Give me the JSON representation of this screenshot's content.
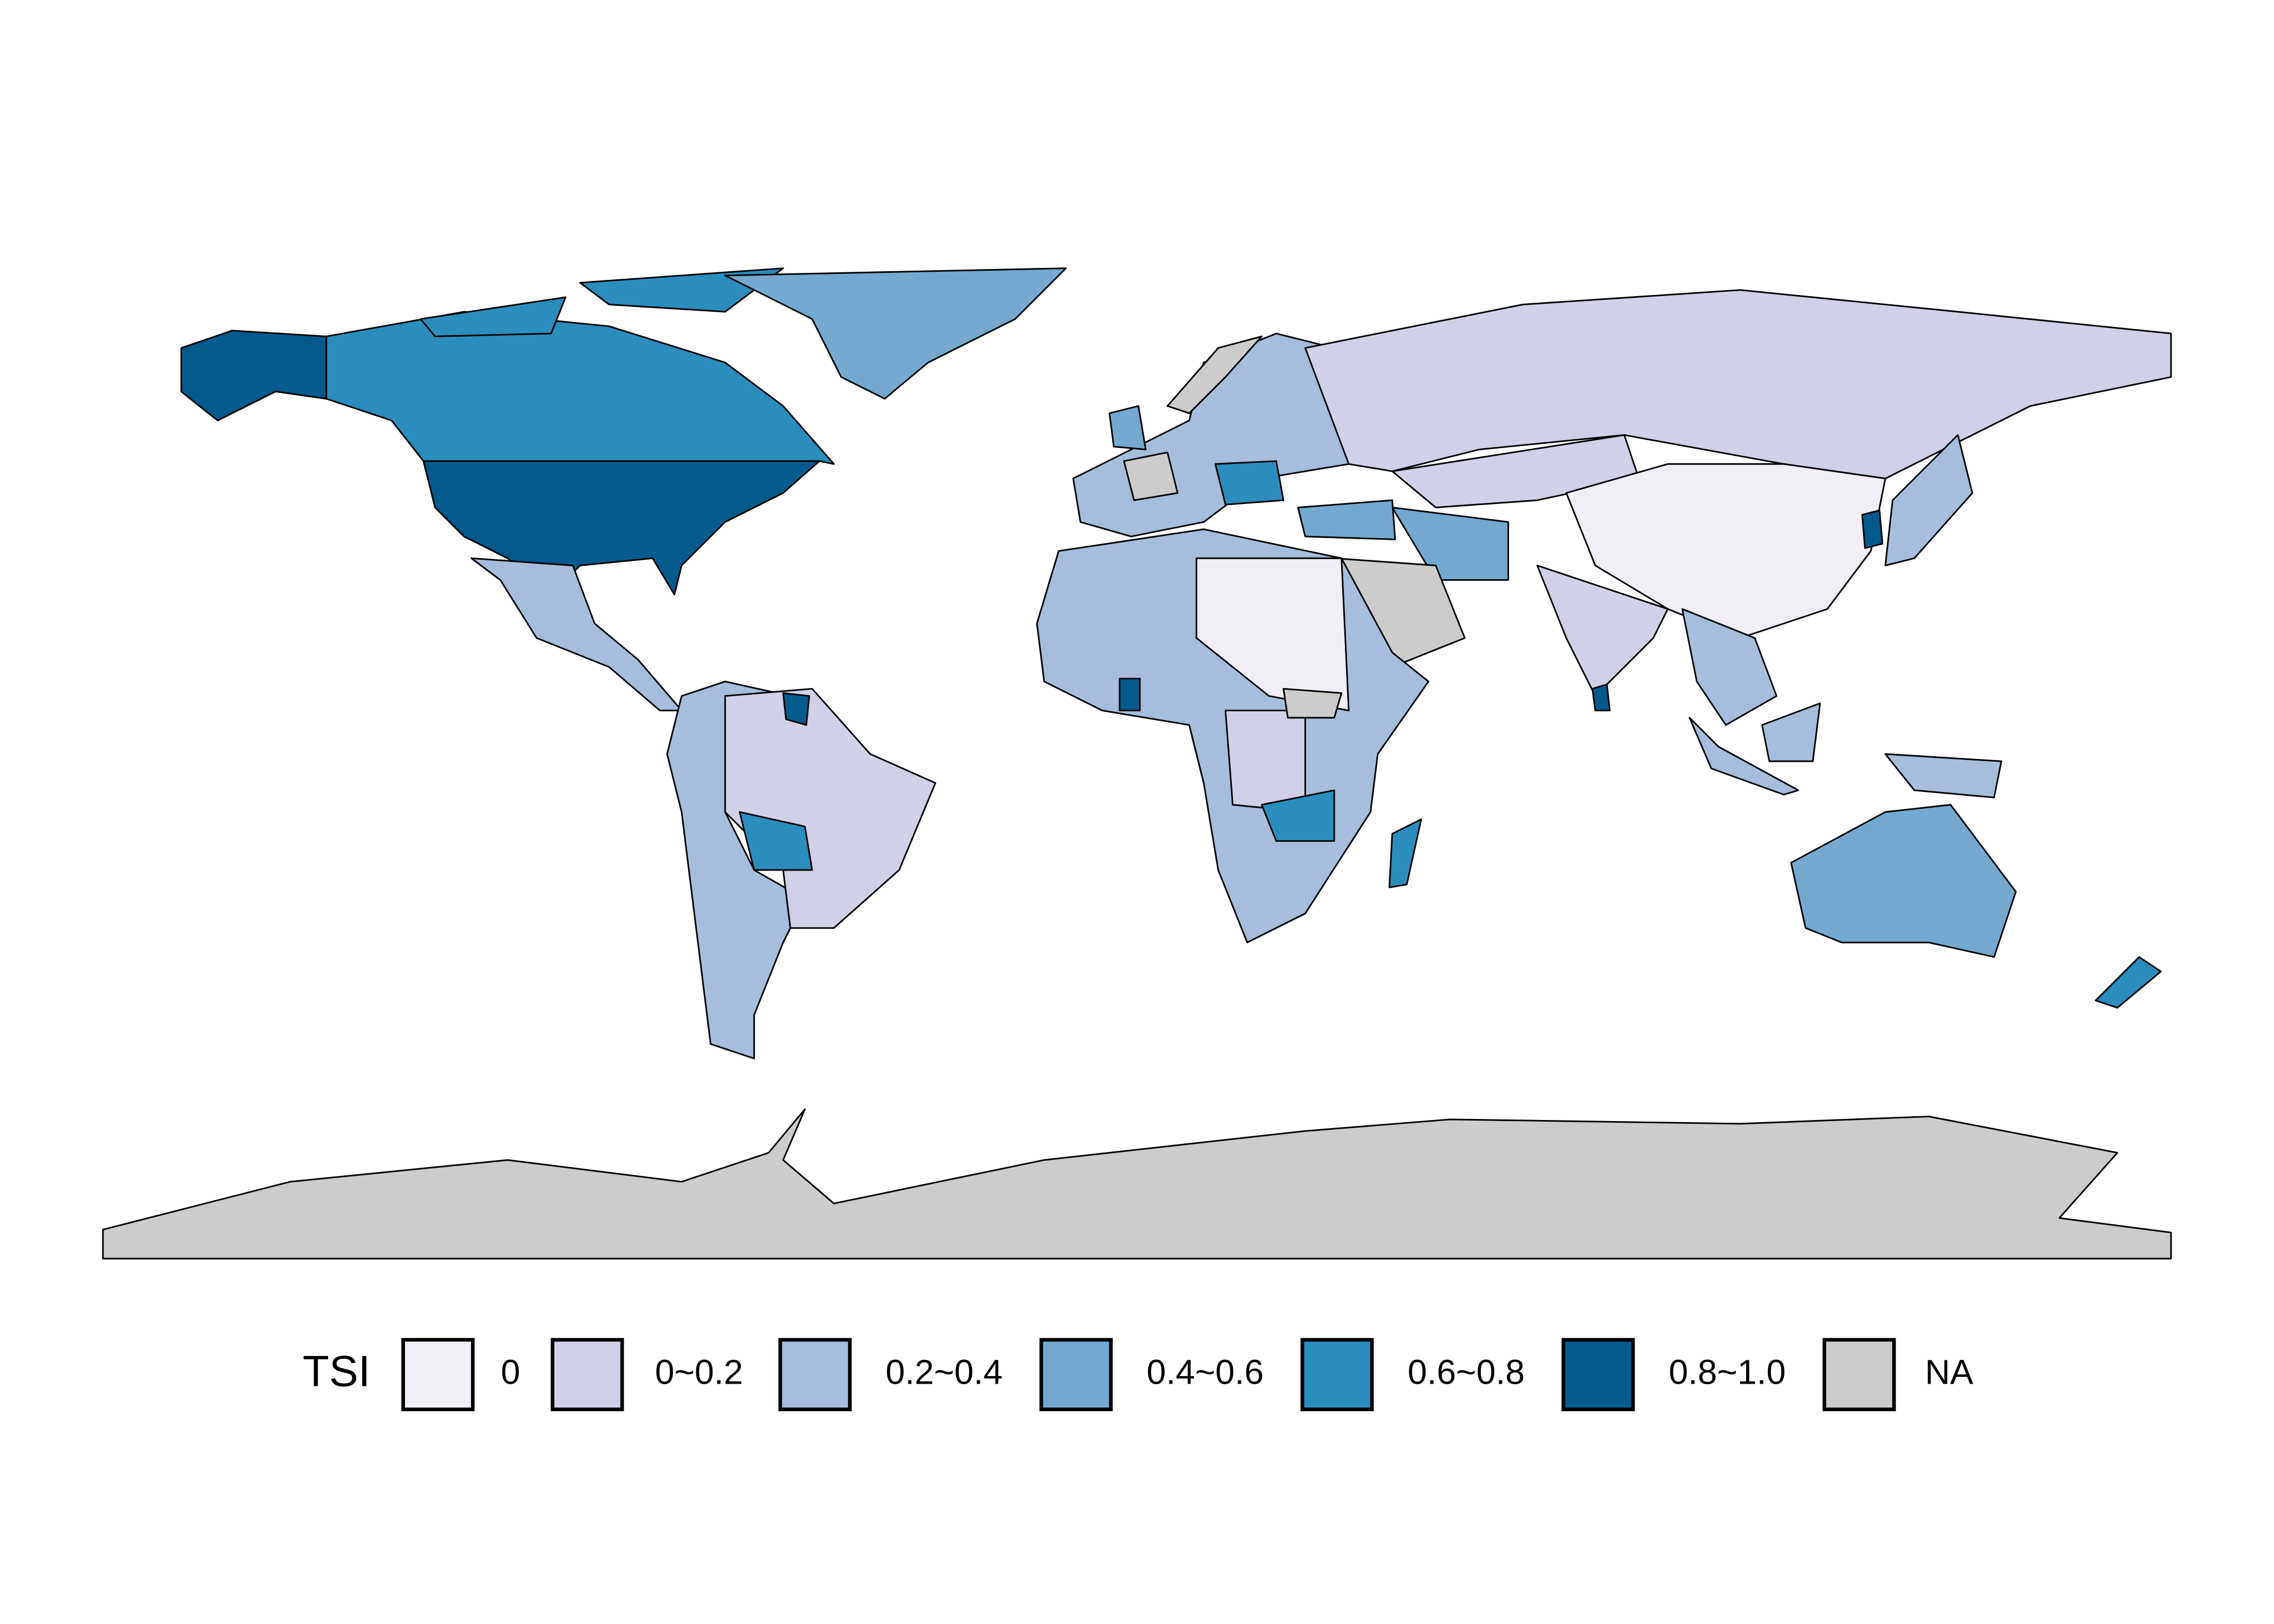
{
  "legend": {
    "title": "TSI",
    "items": [
      {
        "label": "0",
        "color": "#f1eef6"
      },
      {
        "label": "0~0.2",
        "color": "#d0d1e6"
      },
      {
        "label": "0.2~0.4",
        "color": "#a6bddb"
      },
      {
        "label": "0.4~0.6",
        "color": "#74a9cf"
      },
      {
        "label": "0.6~0.8",
        "color": "#2b8cbe"
      },
      {
        "label": "0.8~1.0",
        "color": "#045a8d"
      },
      {
        "label": "NA",
        "color": "#cccccc"
      }
    ]
  }
}
